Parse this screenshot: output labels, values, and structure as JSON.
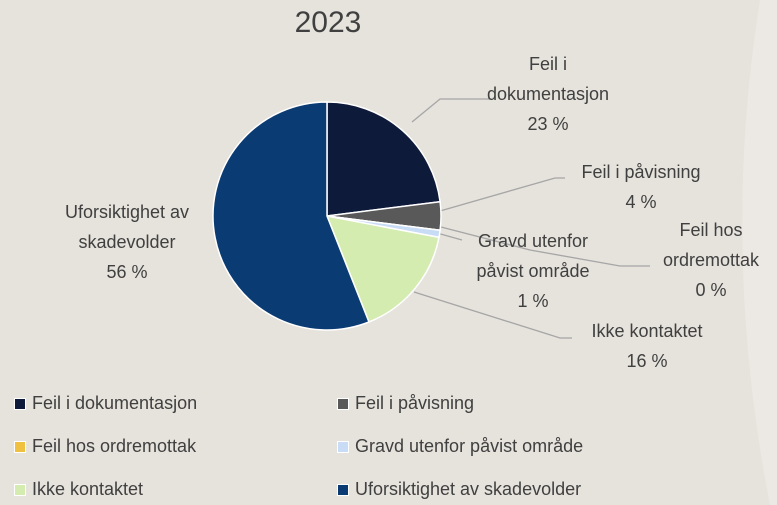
{
  "chart_data": {
    "type": "pie",
    "title": "2023",
    "categories": [
      "Feil i dokumentasjon",
      "Feil i påvisning",
      "Feil hos ordremottak",
      "Gravd utenfor påvist område",
      "Ikke kontaktet",
      "Uforsiktighet av skadevolder"
    ],
    "values": [
      23,
      4,
      0,
      1,
      16,
      56
    ],
    "value_labels": [
      "23 %",
      "4 %",
      "0 %",
      "1 %",
      "16 %",
      "56 %"
    ],
    "colors": [
      "#0e1a3a",
      "#595959",
      "#f0c040",
      "#c9dcf5",
      "#d4ecb0",
      "#0b3b73"
    ],
    "legend": "bottom"
  }
}
